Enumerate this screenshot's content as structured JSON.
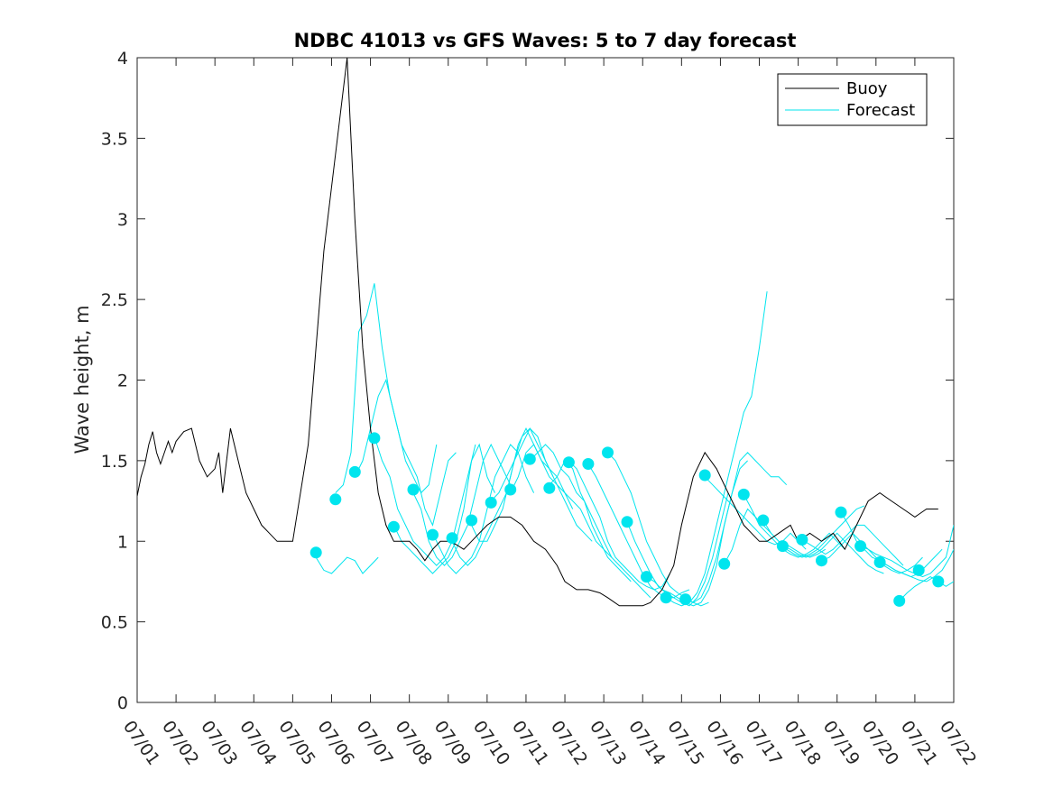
{
  "chart_data": {
    "type": "line",
    "title": "NDBC 41013 vs GFS Waves: 5 to 7 day forecast",
    "xlabel": "",
    "ylabel": "Wave height, m",
    "xlim": [
      0,
      21
    ],
    "ylim": [
      0,
      4
    ],
    "x_tick_labels": [
      "07/01",
      "07/02",
      "07/03",
      "07/04",
      "07/05",
      "07/06",
      "07/07",
      "07/08",
      "07/09",
      "07/10",
      "07/11",
      "07/12",
      "07/13",
      "07/14",
      "07/15",
      "07/16",
      "07/17",
      "07/18",
      "07/19",
      "07/20",
      "07/21",
      "07/22"
    ],
    "y_tick_values": [
      0,
      0.5,
      1,
      1.5,
      2,
      2.5,
      3,
      3.5,
      4
    ],
    "y_tick_labels": [
      "0",
      "0.5",
      "1",
      "1.5",
      "2",
      "2.5",
      "3",
      "3.5",
      "4"
    ],
    "x_unit_note": "x values are days after 07/01 00:00",
    "grid": false,
    "legend_position": "top-right",
    "legend": [
      {
        "label": "Buoy",
        "color": "#000000"
      },
      {
        "label": "Forecast",
        "color": "#00e5ee"
      }
    ],
    "buoy": {
      "name": "Buoy",
      "color": "#000000",
      "x": [
        0.0,
        0.1,
        0.2,
        0.3,
        0.4,
        0.5,
        0.6,
        0.7,
        0.8,
        0.9,
        1.0,
        1.2,
        1.4,
        1.6,
        1.8,
        2.0,
        2.1,
        2.2,
        2.4,
        2.6,
        2.8,
        3.0,
        3.2,
        3.4,
        3.6,
        3.8,
        4.0,
        4.2,
        4.4,
        4.6,
        4.8,
        5.0,
        5.2,
        5.4,
        5.6,
        5.8,
        6.0,
        6.2,
        6.4,
        6.6,
        6.8,
        7.0,
        7.2,
        7.4,
        7.6,
        7.8,
        8.0,
        8.2,
        8.4,
        8.6,
        8.8,
        9.0,
        9.3,
        9.6,
        9.9,
        10.2,
        10.5,
        10.8,
        11.0,
        11.3,
        11.6,
        11.9,
        12.1,
        12.4,
        12.7,
        13.0,
        13.2,
        13.5,
        13.8,
        14.0,
        14.3,
        14.6,
        14.9,
        15.2,
        15.4,
        15.6,
        15.8,
        16.0,
        16.2,
        16.5,
        16.8,
        17.0,
        17.3,
        17.6,
        17.9,
        18.2,
        18.5,
        18.8,
        19.1,
        19.4,
        19.7,
        20.0,
        20.3,
        20.6
      ],
      "y": [
        1.28,
        1.4,
        1.48,
        1.6,
        1.68,
        1.55,
        1.48,
        1.55,
        1.62,
        1.55,
        1.62,
        1.68,
        1.7,
        1.5,
        1.4,
        1.45,
        1.55,
        1.3,
        1.7,
        1.5,
        1.3,
        1.2,
        1.1,
        1.05,
        1.0,
        1.0,
        1.0,
        1.3,
        1.6,
        2.2,
        2.8,
        3.2,
        3.6,
        4.0,
        3.0,
        2.2,
        1.7,
        1.3,
        1.1,
        1.0,
        1.0,
        1.0,
        0.95,
        0.88,
        0.95,
        1.0,
        1.0,
        0.98,
        0.95,
        1.0,
        1.05,
        1.1,
        1.15,
        1.15,
        1.1,
        1.0,
        0.95,
        0.85,
        0.75,
        0.7,
        0.7,
        0.68,
        0.65,
        0.6,
        0.6,
        0.6,
        0.62,
        0.7,
        0.85,
        1.1,
        1.4,
        1.55,
        1.45,
        1.3,
        1.2,
        1.1,
        1.05,
        1.0,
        1.0,
        1.05,
        1.1,
        1.0,
        1.05,
        1.0,
        1.05,
        0.95,
        1.1,
        1.25,
        1.3,
        1.25,
        1.2,
        1.15,
        1.2,
        1.2
      ]
    },
    "forecast_segments": [
      {
        "x": [
          4.6,
          4.8,
          5.0,
          5.2,
          5.4,
          5.6,
          5.8,
          6.0,
          6.2
        ],
        "y": [
          0.9,
          0.82,
          0.8,
          0.85,
          0.9,
          0.88,
          0.8,
          0.85,
          0.9
        ]
      },
      {
        "x": [
          5.1,
          5.3,
          5.5,
          5.7,
          5.9,
          6.1,
          6.3,
          6.5,
          6.7,
          6.9,
          7.1,
          7.3,
          7.5,
          7.7
        ],
        "y": [
          1.3,
          1.35,
          1.55,
          2.3,
          2.4,
          2.6,
          2.2,
          1.9,
          1.7,
          1.5,
          1.4,
          1.3,
          1.35,
          1.6
        ]
      },
      {
        "x": [
          5.6,
          5.8,
          6.0,
          6.2,
          6.4,
          6.6,
          6.8,
          7.0,
          7.2,
          7.4,
          7.6,
          7.8,
          8.0,
          8.2
        ],
        "y": [
          1.4,
          1.5,
          1.7,
          1.9,
          2.0,
          1.8,
          1.6,
          1.5,
          1.4,
          1.2,
          1.1,
          1.3,
          1.5,
          1.55
        ]
      },
      {
        "x": [
          6.1,
          6.3,
          6.5,
          6.7,
          6.9,
          7.1,
          7.3,
          7.5,
          7.7,
          7.9,
          8.1,
          8.3,
          8.5,
          8.7
        ],
        "y": [
          1.65,
          1.5,
          1.4,
          1.2,
          1.1,
          1.0,
          0.95,
          0.9,
          0.85,
          0.9,
          1.0,
          1.2,
          1.4,
          1.6
        ]
      },
      {
        "x": [
          6.6,
          6.8,
          7.0,
          7.2,
          7.4,
          7.6,
          7.8,
          8.0,
          8.2,
          8.4,
          8.6,
          8.8,
          9.0,
          9.2
        ],
        "y": [
          1.1,
          1.0,
          0.95,
          0.9,
          0.85,
          0.8,
          0.85,
          0.9,
          1.0,
          1.2,
          1.5,
          1.6,
          1.4,
          1.3
        ]
      },
      {
        "x": [
          7.1,
          7.3,
          7.5,
          7.7,
          7.9,
          8.1,
          8.3,
          8.5,
          8.7,
          8.9,
          9.1,
          9.3,
          9.5,
          9.7
        ],
        "y": [
          1.3,
          1.2,
          1.0,
          0.9,
          0.85,
          0.9,
          1.0,
          1.1,
          1.3,
          1.5,
          1.6,
          1.5,
          1.4,
          1.3
        ]
      },
      {
        "x": [
          7.6,
          7.8,
          8.0,
          8.2,
          8.4,
          8.6,
          8.8,
          9.0,
          9.2,
          9.4,
          9.6,
          9.8,
          10.0,
          10.2
        ],
        "y": [
          1.05,
          0.95,
          0.85,
          0.8,
          0.85,
          0.9,
          1.0,
          1.2,
          1.4,
          1.5,
          1.6,
          1.55,
          1.4,
          1.3
        ]
      },
      {
        "x": [
          8.1,
          8.3,
          8.5,
          8.7,
          8.9,
          9.1,
          9.3,
          9.5,
          9.7,
          9.9,
          10.1,
          10.3,
          10.5,
          10.7
        ],
        "y": [
          1.0,
          0.9,
          0.85,
          0.9,
          1.0,
          1.1,
          1.2,
          1.3,
          1.5,
          1.6,
          1.7,
          1.65,
          1.5,
          1.4
        ]
      },
      {
        "x": [
          8.6,
          8.8,
          9.0,
          9.2,
          9.4,
          9.6,
          9.8,
          10.0,
          10.2,
          10.4,
          10.6,
          10.8,
          11.0,
          11.2
        ],
        "y": [
          1.1,
          1.0,
          1.0,
          1.1,
          1.2,
          1.4,
          1.6,
          1.7,
          1.6,
          1.5,
          1.45,
          1.4,
          1.3,
          1.2
        ]
      },
      {
        "x": [
          9.1,
          9.3,
          9.5,
          9.7,
          9.9,
          10.1,
          10.3,
          10.5,
          10.7,
          10.9,
          11.1,
          11.3,
          11.5,
          11.7
        ],
        "y": [
          1.25,
          1.3,
          1.4,
          1.5,
          1.65,
          1.7,
          1.6,
          1.5,
          1.4,
          1.3,
          1.2,
          1.1,
          1.05,
          1.0
        ]
      },
      {
        "x": [
          9.6,
          9.8,
          10.0,
          10.2,
          10.4,
          10.6,
          10.8,
          11.0,
          11.2,
          11.4,
          11.6,
          11.8,
          12.0,
          12.2
        ],
        "y": [
          1.3,
          1.4,
          1.55,
          1.6,
          1.5,
          1.4,
          1.35,
          1.3,
          1.25,
          1.2,
          1.1,
          1.0,
          0.95,
          0.9
        ]
      },
      {
        "x": [
          10.1,
          10.3,
          10.5,
          10.7,
          10.9,
          11.1,
          11.3,
          11.5,
          11.7,
          11.9,
          12.1,
          12.3,
          12.5,
          12.7
        ],
        "y": [
          1.5,
          1.55,
          1.6,
          1.55,
          1.45,
          1.4,
          1.3,
          1.25,
          1.1,
          1.0,
          0.9,
          0.85,
          0.8,
          0.75
        ]
      },
      {
        "x": [
          10.6,
          10.8,
          11.0,
          11.2,
          11.4,
          11.6,
          11.8,
          12.0,
          12.2,
          12.4,
          12.6,
          12.8,
          13.0,
          13.2
        ],
        "y": [
          1.35,
          1.4,
          1.5,
          1.45,
          1.3,
          1.2,
          1.1,
          1.0,
          0.9,
          0.85,
          0.8,
          0.75,
          0.7,
          0.65
        ]
      },
      {
        "x": [
          11.1,
          11.3,
          11.5,
          11.7,
          11.9,
          12.1,
          12.3,
          12.5,
          12.7,
          12.9,
          13.1,
          13.3,
          13.5,
          13.7
        ],
        "y": [
          1.5,
          1.45,
          1.35,
          1.25,
          1.15,
          1.0,
          0.9,
          0.85,
          0.8,
          0.75,
          0.72,
          0.7,
          0.72,
          0.8
        ]
      },
      {
        "x": [
          11.6,
          11.8,
          12.0,
          12.2,
          12.4,
          12.6,
          12.8,
          13.0,
          13.2,
          13.4,
          13.6,
          13.8,
          14.0,
          14.2
        ],
        "y": [
          1.48,
          1.4,
          1.3,
          1.2,
          1.1,
          1.0,
          0.9,
          0.8,
          0.72,
          0.68,
          0.65,
          0.65,
          0.68,
          0.7
        ]
      },
      {
        "x": [
          12.1,
          12.3,
          12.5,
          12.7,
          12.9,
          13.1,
          13.3,
          13.5,
          13.7,
          13.9,
          14.1,
          14.3,
          14.5,
          14.7
        ],
        "y": [
          1.55,
          1.5,
          1.4,
          1.3,
          1.15,
          1.0,
          0.9,
          0.8,
          0.72,
          0.68,
          0.65,
          0.62,
          0.6,
          0.62
        ]
      },
      {
        "x": [
          12.6,
          12.8,
          13.0,
          13.2,
          13.4,
          13.6,
          13.8,
          14.0,
          14.2,
          14.4,
          14.6,
          14.8,
          15.0,
          15.2
        ],
        "y": [
          1.12,
          1.0,
          0.9,
          0.8,
          0.72,
          0.68,
          0.65,
          0.62,
          0.6,
          0.65,
          0.75,
          0.9,
          1.1,
          1.3
        ]
      },
      {
        "x": [
          13.1,
          13.3,
          13.5,
          13.7,
          13.9,
          14.1,
          14.3,
          14.5,
          14.7,
          14.9,
          15.1,
          15.3,
          15.5,
          15.7
        ],
        "y": [
          0.78,
          0.75,
          0.7,
          0.68,
          0.65,
          0.62,
          0.6,
          0.62,
          0.7,
          0.85,
          1.1,
          1.3,
          1.45,
          1.5
        ]
      },
      {
        "x": [
          13.6,
          13.8,
          14.0,
          14.2,
          14.4,
          14.6,
          14.8,
          15.0,
          15.2,
          15.4,
          15.6,
          15.8,
          16.0,
          16.2
        ],
        "y": [
          0.65,
          0.62,
          0.6,
          0.62,
          0.68,
          0.8,
          1.0,
          1.2,
          1.4,
          1.6,
          1.8,
          1.9,
          2.2,
          2.55
        ]
      },
      {
        "x": [
          14.1,
          14.3,
          14.5,
          14.7,
          14.9,
          15.1,
          15.3,
          15.5,
          15.7,
          15.9,
          16.1,
          16.3,
          16.5,
          16.7
        ],
        "y": [
          0.64,
          0.62,
          0.65,
          0.75,
          0.9,
          1.1,
          1.3,
          1.5,
          1.55,
          1.5,
          1.45,
          1.4,
          1.4,
          1.35
        ]
      },
      {
        "x": [
          14.6,
          14.8,
          15.0,
          15.2,
          15.4,
          15.6,
          15.8,
          16.0,
          16.2,
          16.4,
          16.6,
          16.8,
          17.0,
          17.2
        ],
        "y": [
          1.4,
          1.35,
          1.3,
          1.25,
          1.2,
          1.15,
          1.1,
          1.05,
          1.0,
          0.98,
          1.0,
          1.05,
          1.0,
          0.95
        ]
      },
      {
        "x": [
          15.1,
          15.3,
          15.5,
          15.7,
          15.9,
          16.1,
          16.3,
          16.5,
          16.7,
          16.9,
          17.1,
          17.3,
          17.5,
          17.7
        ],
        "y": [
          0.86,
          0.95,
          1.1,
          1.2,
          1.15,
          1.1,
          1.05,
          1.0,
          0.98,
          0.95,
          0.92,
          0.9,
          0.92,
          0.95
        ]
      },
      {
        "x": [
          15.6,
          15.8,
          16.0,
          16.2,
          16.4,
          16.6,
          16.8,
          17.0,
          17.2,
          17.4,
          17.6,
          17.8,
          18.0,
          18.2
        ],
        "y": [
          1.29,
          1.2,
          1.1,
          1.05,
          1.0,
          0.95,
          0.92,
          0.9,
          0.92,
          0.95,
          1.0,
          1.05,
          1.0,
          0.95
        ]
      },
      {
        "x": [
          16.1,
          16.3,
          16.5,
          16.7,
          16.9,
          17.1,
          17.3,
          17.5,
          17.7,
          17.9,
          18.1,
          18.3,
          18.5,
          18.7
        ],
        "y": [
          1.13,
          1.05,
          1.0,
          0.95,
          0.92,
          0.9,
          0.92,
          0.95,
          1.0,
          1.05,
          1.1,
          1.15,
          1.2,
          1.22
        ]
      },
      {
        "x": [
          16.6,
          16.8,
          17.0,
          17.2,
          17.4,
          17.6,
          17.8,
          18.0,
          18.2,
          18.4,
          18.6,
          18.8,
          19.0,
          19.2
        ],
        "y": [
          0.97,
          0.95,
          0.92,
          0.9,
          0.92,
          0.95,
          1.0,
          1.05,
          1.0,
          0.95,
          0.9,
          0.85,
          0.82,
          0.8
        ]
      },
      {
        "x": [
          17.1,
          17.3,
          17.5,
          17.7,
          17.9,
          18.1,
          18.3,
          18.5,
          18.7,
          18.9,
          19.1,
          19.3,
          19.5,
          19.7
        ],
        "y": [
          1.01,
          0.98,
          0.95,
          0.92,
          0.95,
          1.0,
          1.05,
          1.1,
          1.1,
          1.05,
          1.0,
          0.95,
          0.9,
          0.85
        ]
      },
      {
        "x": [
          17.6,
          17.8,
          18.0,
          18.2,
          18.4,
          18.6,
          18.8,
          19.0,
          19.2,
          19.4,
          19.6,
          19.8,
          20.0,
          20.2
        ],
        "y": [
          0.88,
          0.9,
          0.95,
          1.0,
          1.05,
          1.0,
          0.95,
          0.9,
          0.85,
          0.82,
          0.8,
          0.82,
          0.85,
          0.9
        ]
      },
      {
        "x": [
          18.1,
          18.3,
          18.5,
          18.7,
          18.9,
          19.1,
          19.3,
          19.5,
          19.7,
          19.9,
          20.1,
          20.3,
          20.5,
          20.7
        ],
        "y": [
          1.18,
          1.1,
          1.0,
          0.95,
          0.9,
          0.88,
          0.85,
          0.82,
          0.8,
          0.78,
          0.8,
          0.85,
          0.9,
          0.95
        ]
      },
      {
        "x": [
          18.6,
          18.8,
          19.0,
          19.2,
          19.4,
          19.6,
          19.8,
          20.0,
          20.2,
          20.4,
          20.6,
          20.8,
          21.0
        ],
        "y": [
          0.97,
          0.95,
          0.92,
          0.9,
          0.88,
          0.85,
          0.82,
          0.8,
          0.78,
          0.8,
          0.85,
          0.9,
          1.1
        ]
      },
      {
        "x": [
          19.1,
          19.3,
          19.5,
          19.7,
          19.9,
          20.1,
          20.3,
          20.5,
          20.7,
          20.9,
          21.0
        ],
        "y": [
          0.87,
          0.85,
          0.82,
          0.8,
          0.78,
          0.76,
          0.75,
          0.78,
          0.82,
          0.9,
          0.95
        ]
      },
      {
        "x": [
          19.6,
          19.8,
          20.0,
          20.2,
          20.4,
          20.6,
          20.8,
          21.0
        ],
        "y": [
          0.63,
          0.68,
          0.72,
          0.75,
          0.78,
          0.75,
          0.72,
          0.75
        ]
      }
    ],
    "forecast_points": {
      "x": [
        4.6,
        5.1,
        5.6,
        6.1,
        6.6,
        7.1,
        7.6,
        8.1,
        8.6,
        9.1,
        9.6,
        10.1,
        10.6,
        11.1,
        11.6,
        12.1,
        12.6,
        13.1,
        13.6,
        14.1,
        14.6,
        15.1,
        15.6,
        16.1,
        16.6,
        17.1,
        17.6,
        18.1,
        18.6,
        19.1,
        19.6,
        20.1,
        20.6
      ],
      "y": [
        0.93,
        1.26,
        1.43,
        1.64,
        1.09,
        1.32,
        1.04,
        1.02,
        1.13,
        1.24,
        1.32,
        1.51,
        1.33,
        1.49,
        1.48,
        1.55,
        1.12,
        0.78,
        0.65,
        0.64,
        1.41,
        0.86,
        1.29,
        1.13,
        0.97,
        1.01,
        0.88,
        1.18,
        0.97,
        0.87,
        0.63,
        0.82,
        0.75
      ]
    }
  }
}
